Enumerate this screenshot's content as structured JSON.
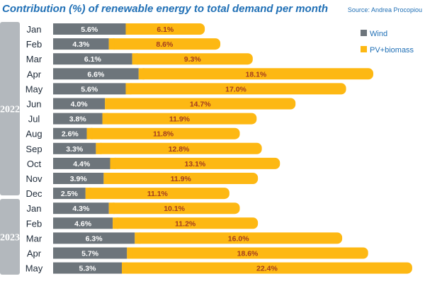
{
  "chart_data": {
    "type": "bar",
    "orientation": "horizontal",
    "stacked": true,
    "title": "Contribution (%) of renewable energy to total demand per month",
    "source": "Source: Andrea Procopiou",
    "groups": [
      {
        "label": "2022",
        "categories": [
          "Jan",
          "Feb",
          "Mar",
          "Apr",
          "May",
          "Jun",
          "Jul",
          "Aug",
          "Sep",
          "Oct",
          "Nov",
          "Dec"
        ]
      },
      {
        "label": "2023",
        "categories": [
          "Jan",
          "Feb",
          "Mar",
          "Apr",
          "May"
        ]
      }
    ],
    "series": [
      {
        "name": "Wind",
        "color": "#6d757b",
        "values": [
          5.6,
          4.3,
          6.1,
          6.6,
          5.6,
          4.0,
          3.8,
          2.6,
          3.3,
          4.4,
          3.9,
          2.5,
          4.3,
          4.6,
          6.3,
          5.7,
          5.3
        ],
        "labels": [
          "5.6%",
          "4.3%",
          "6.1%",
          "6.6%",
          "5.6%",
          "4.0%",
          "3.8%",
          "2.6%",
          "3.3%",
          "4.4%",
          "3.9%",
          "2.5%",
          "4.3%",
          "4.6%",
          "6.3%",
          "5.7%",
          "5.3%"
        ]
      },
      {
        "name": "PV+biomass",
        "color": "#fdb813",
        "values": [
          6.1,
          8.6,
          9.3,
          18.1,
          17.0,
          14.7,
          11.9,
          11.8,
          12.8,
          13.1,
          11.9,
          11.1,
          10.1,
          11.2,
          16.0,
          18.6,
          22.4
        ],
        "labels": [
          "6.1%",
          "8.6%",
          "9.3%",
          "18.1%",
          "17.0%",
          "14.7%",
          "11.9%",
          "11.8%",
          "12.8%",
          "13.1%",
          "11.9%",
          "11.1%",
          "10.1%",
          "11.2%",
          "16.0%",
          "18.6%",
          "22.4%"
        ]
      }
    ],
    "legend": "top-right",
    "grid": false,
    "colors": {
      "title": "#1f6fb5",
      "year_band": "#b3b8bd",
      "wind_label": "#ffffff",
      "pv_label": "#a33d1e"
    }
  }
}
